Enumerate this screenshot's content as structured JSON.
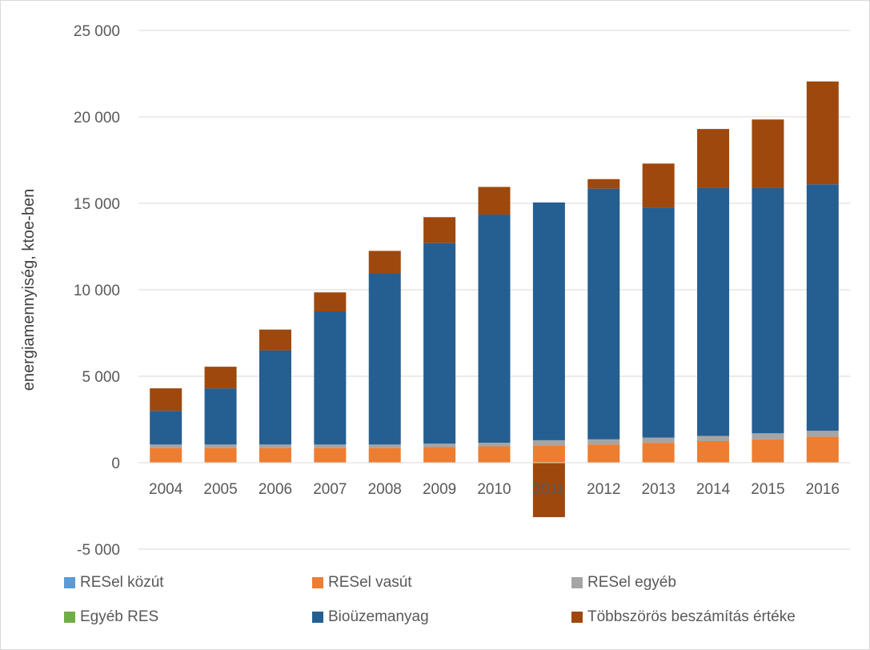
{
  "chart_data": {
    "type": "bar",
    "stacked": true,
    "title": "",
    "xlabel": "",
    "ylabel": "energiamennyiség, ktoe-ben",
    "ylim": [
      -5000,
      25000
    ],
    "yticks": [
      25000,
      20000,
      15000,
      10000,
      5000,
      0,
      -5000
    ],
    "ytick_labels": [
      "25 000",
      "20 000",
      "15 000",
      "10 000",
      "5 000",
      "0",
      "-5 000"
    ],
    "grid": true,
    "legend_position": "bottom",
    "categories": [
      "2004",
      "2005",
      "2006",
      "2007",
      "2008",
      "2009",
      "2010",
      "2011",
      "2012",
      "2013",
      "2014",
      "2015",
      "2016"
    ],
    "series": [
      {
        "name": "RESel közút",
        "color": "#5b9bd5",
        "values": [
          0,
          0,
          0,
          0,
          0,
          0,
          0,
          0,
          0,
          0,
          0,
          0,
          0
        ]
      },
      {
        "name": "RESel vasút",
        "color": "#ed7d31",
        "values": [
          850,
          850,
          850,
          850,
          850,
          900,
          950,
          1000,
          1050,
          1150,
          1250,
          1350,
          1500
        ]
      },
      {
        "name": "RESel egyéb",
        "color": "#a5a5a5",
        "values": [
          200,
          200,
          200,
          200,
          200,
          200,
          200,
          300,
          300,
          300,
          300,
          350,
          350
        ]
      },
      {
        "name": "Egyéb RES",
        "color": "#70ad47",
        "values": [
          0,
          0,
          0,
          0,
          0,
          0,
          0,
          0,
          0,
          0,
          0,
          0,
          0
        ]
      },
      {
        "name": "Bioüzemanyag",
        "color": "#255e91",
        "values": [
          1950,
          3250,
          5450,
          7700,
          9900,
          11600,
          13200,
          13750,
          14500,
          13300,
          14350,
          14200,
          14250
        ]
      },
      {
        "name": "Többszörös beszámítás értéke",
        "color": "#9e480e",
        "values": [
          1300,
          1250,
          1200,
          1100,
          1300,
          1500,
          1600,
          -3150,
          550,
          2550,
          3400,
          3950,
          5950
        ]
      }
    ]
  }
}
